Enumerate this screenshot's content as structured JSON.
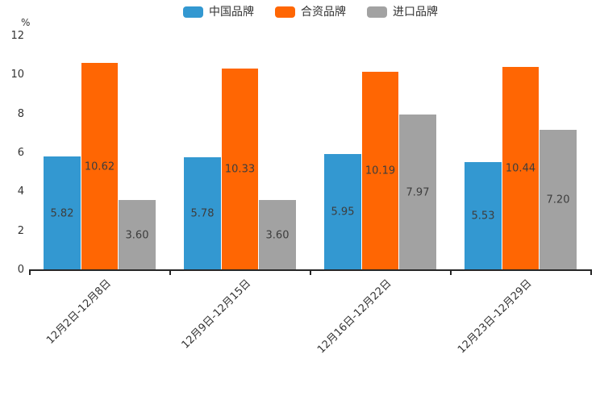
{
  "chart_data": {
    "type": "bar",
    "title": "",
    "xlabel": "",
    "ylabel": "%",
    "categories": [
      "12月2日-12月8日",
      "12月9日-12月15日",
      "12月16日-12月22日",
      "12月23日-12月29日"
    ],
    "series": [
      {
        "name": "中国品牌",
        "color": "#3398d1",
        "values": [
          5.82,
          5.78,
          5.95,
          5.53
        ]
      },
      {
        "name": "合资品牌",
        "color": "#ff6603",
        "values": [
          10.62,
          10.33,
          10.19,
          10.44
        ]
      },
      {
        "name": "进口品牌",
        "color": "#a2a2a2",
        "values": [
          3.6,
          3.6,
          7.97,
          7.2
        ]
      }
    ],
    "ylim": [
      0,
      12
    ],
    "y_ticks": [
      0,
      2,
      4,
      6,
      8,
      10,
      12
    ],
    "legend_position": "top",
    "grid": false,
    "value_labels": "inside-center",
    "value_label_decimals": 2,
    "x_label_rotation": -45
  },
  "colors": {
    "background": "#ffffff",
    "axis_line": "#262626",
    "tick_text": "#333333",
    "value_label_text": "#3d3d3d"
  }
}
